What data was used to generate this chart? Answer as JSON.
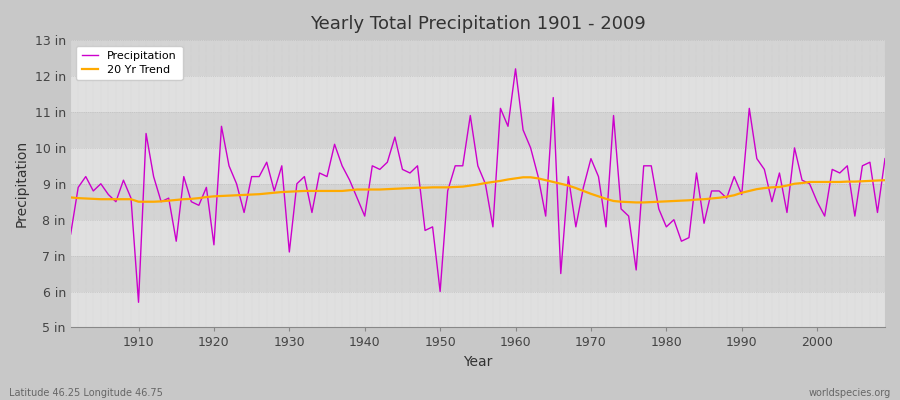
{
  "title": "Yearly Total Precipitation 1901 - 2009",
  "xlabel": "Year",
  "ylabel": "Precipitation",
  "fig_bg_color": "#d8d8d8",
  "plot_bg_color": "#dcdcdc",
  "precip_color": "#cc00cc",
  "trend_color": "#ffaa00",
  "legend_precip": "Precipitation",
  "legend_trend": "20 Yr Trend",
  "bottom_left": "Latitude 46.25 Longitude 46.75",
  "bottom_right": "worldspecies.org",
  "ylim": [
    5,
    13
  ],
  "yticks": [
    5,
    6,
    7,
    8,
    9,
    10,
    11,
    12,
    13
  ],
  "ytick_labels": [
    "5 in",
    "6 in",
    "7 in",
    "8 in",
    "9 in",
    "10 in",
    "11 in",
    "12 in",
    "13 in"
  ],
  "years": [
    1901,
    1902,
    1903,
    1904,
    1905,
    1906,
    1907,
    1908,
    1909,
    1910,
    1911,
    1912,
    1913,
    1914,
    1915,
    1916,
    1917,
    1918,
    1919,
    1920,
    1921,
    1922,
    1923,
    1924,
    1925,
    1926,
    1927,
    1928,
    1929,
    1930,
    1931,
    1932,
    1933,
    1934,
    1935,
    1936,
    1937,
    1938,
    1939,
    1940,
    1941,
    1942,
    1943,
    1944,
    1945,
    1946,
    1947,
    1948,
    1949,
    1950,
    1951,
    1952,
    1953,
    1954,
    1955,
    1956,
    1957,
    1958,
    1959,
    1960,
    1961,
    1962,
    1963,
    1964,
    1965,
    1966,
    1967,
    1968,
    1969,
    1970,
    1971,
    1972,
    1973,
    1974,
    1975,
    1976,
    1977,
    1978,
    1979,
    1980,
    1981,
    1982,
    1983,
    1984,
    1985,
    1986,
    1987,
    1988,
    1989,
    1990,
    1991,
    1992,
    1993,
    1994,
    1995,
    1996,
    1997,
    1998,
    1999,
    2000,
    2001,
    2002,
    2003,
    2004,
    2005,
    2006,
    2007,
    2008,
    2009
  ],
  "precip": [
    7.6,
    8.9,
    9.2,
    8.8,
    9.0,
    8.7,
    8.5,
    9.1,
    8.6,
    5.7,
    10.4,
    9.2,
    8.5,
    8.6,
    7.4,
    9.2,
    8.5,
    8.4,
    8.9,
    7.3,
    10.6,
    9.5,
    9.0,
    8.2,
    9.2,
    9.2,
    9.6,
    8.8,
    9.5,
    7.1,
    9.0,
    9.2,
    8.2,
    9.3,
    9.2,
    10.1,
    9.5,
    9.1,
    8.6,
    8.1,
    9.5,
    9.4,
    9.6,
    10.3,
    9.4,
    9.3,
    9.5,
    7.7,
    7.8,
    6.0,
    8.8,
    9.5,
    9.5,
    10.9,
    9.5,
    9.0,
    7.8,
    11.1,
    10.6,
    12.2,
    10.5,
    10.0,
    9.2,
    8.1,
    11.4,
    6.5,
    9.2,
    7.8,
    8.9,
    9.7,
    9.2,
    7.8,
    10.9,
    8.3,
    8.1,
    6.6,
    9.5,
    9.5,
    8.3,
    7.8,
    8.0,
    7.4,
    7.5,
    9.3,
    7.9,
    8.8,
    8.8,
    8.6,
    9.2,
    8.7,
    11.1,
    9.7,
    9.4,
    8.5,
    9.3,
    8.2,
    10.0,
    9.1,
    9.0,
    8.5,
    8.1,
    9.4,
    9.3,
    9.5,
    8.1,
    9.5,
    9.6,
    8.2,
    9.7
  ],
  "trend": [
    8.62,
    8.6,
    8.59,
    8.58,
    8.57,
    8.57,
    8.57,
    8.57,
    8.57,
    8.5,
    8.5,
    8.5,
    8.51,
    8.53,
    8.55,
    8.57,
    8.58,
    8.6,
    8.63,
    8.65,
    8.66,
    8.67,
    8.68,
    8.69,
    8.7,
    8.71,
    8.73,
    8.75,
    8.77,
    8.78,
    8.79,
    8.8,
    8.8,
    8.8,
    8.8,
    8.8,
    8.8,
    8.82,
    8.84,
    8.84,
    8.84,
    8.84,
    8.85,
    8.86,
    8.87,
    8.88,
    8.89,
    8.89,
    8.9,
    8.9,
    8.9,
    8.91,
    8.92,
    8.95,
    8.98,
    9.02,
    9.05,
    9.08,
    9.12,
    9.15,
    9.18,
    9.18,
    9.15,
    9.1,
    9.05,
    9.0,
    8.95,
    8.88,
    8.8,
    8.72,
    8.65,
    8.58,
    8.52,
    8.5,
    8.49,
    8.48,
    8.48,
    8.49,
    8.5,
    8.51,
    8.52,
    8.53,
    8.54,
    8.56,
    8.57,
    8.59,
    8.61,
    8.64,
    8.68,
    8.75,
    8.8,
    8.85,
    8.88,
    8.9,
    8.91,
    8.95,
    9.0,
    9.02,
    9.05,
    9.05,
    9.05,
    9.05,
    9.05,
    9.06,
    9.06,
    9.07,
    9.08,
    9.09,
    9.1
  ]
}
